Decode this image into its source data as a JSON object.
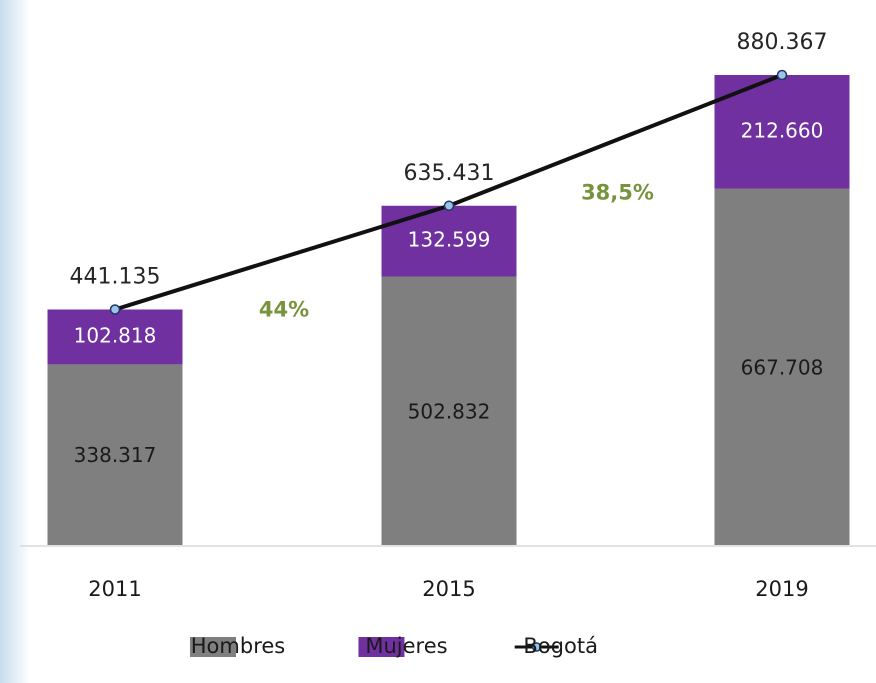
{
  "chart_data": {
    "type": "bar",
    "categories": [
      "2011",
      "2015",
      "2019"
    ],
    "stacked": true,
    "series": [
      {
        "name": "Hombres",
        "color": "#7f7f7f",
        "values": [
          338317,
          502832,
          667708
        ],
        "value_labels": [
          "338.317",
          "502.832",
          "667.708"
        ]
      },
      {
        "name": "Mujeres",
        "color": "#7030a0",
        "values": [
          102818,
          132599,
          212660
        ],
        "value_labels": [
          "102.818",
          "132.599",
          "212.660"
        ]
      },
      {
        "name": "Bogotá",
        "type": "line",
        "color": "#111111",
        "values": [
          441135,
          635431,
          880367
        ],
        "value_labels": [
          "441.135",
          "635.431",
          "880.367"
        ]
      }
    ],
    "annotations": [
      "44%",
      "38,5%"
    ],
    "annotation_color": "#77933c",
    "legend": "bottom"
  }
}
